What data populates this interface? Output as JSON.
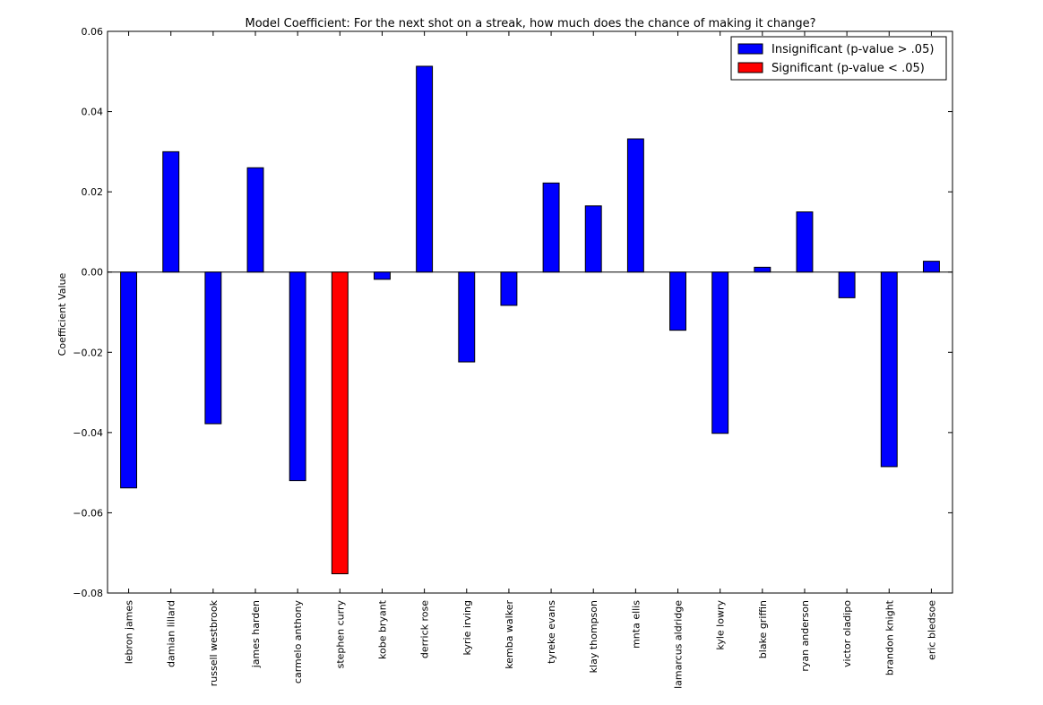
{
  "chart_data": {
    "type": "bar",
    "title": "Model Coefficient: For the next shot on a streak, how much does the chance of making it change?",
    "xlabel": "",
    "ylabel": "Coefficient Value",
    "ylim": [
      -0.08,
      0.06
    ],
    "yticks": [
      "0.06",
      "0.04",
      "0.02",
      "0.00",
      "−0.02",
      "−0.04",
      "−0.06",
      "−0.08"
    ],
    "ytick_values": [
      0.06,
      0.04,
      0.02,
      0.0,
      -0.02,
      -0.04,
      -0.06,
      -0.08
    ],
    "grid": false,
    "legend_position": "top-right",
    "categories": [
      "lebron james",
      "damian lillard",
      "russell westbrook",
      "james harden",
      "carmelo anthony",
      "stephen curry",
      "kobe bryant",
      "derrick rose",
      "kyrie irving",
      "kemba walker",
      "tyreke evans",
      "klay thompson",
      "mnta ellis",
      "lamarcus aldridge",
      "kyle lowry",
      "blake griffin",
      "ryan anderson",
      "victor oladipo",
      "brandon knight",
      "eric bledsoe"
    ],
    "values": [
      -0.0538,
      0.03,
      -0.0378,
      0.026,
      -0.052,
      -0.0752,
      -0.0018,
      0.0513,
      -0.0224,
      -0.0083,
      0.0222,
      0.0165,
      0.0332,
      -0.0145,
      -0.0402,
      0.0012,
      0.015,
      -0.0064,
      -0.0485,
      0.0027
    ],
    "significant": [
      false,
      false,
      false,
      false,
      false,
      true,
      false,
      false,
      false,
      false,
      false,
      false,
      false,
      false,
      false,
      false,
      false,
      false,
      false,
      false
    ],
    "series": [
      {
        "name": "Insignificant (p-value > .05)",
        "color": "#0000ff"
      },
      {
        "name": "Significant (p-value < .05)",
        "color": "#ff0000"
      }
    ]
  }
}
